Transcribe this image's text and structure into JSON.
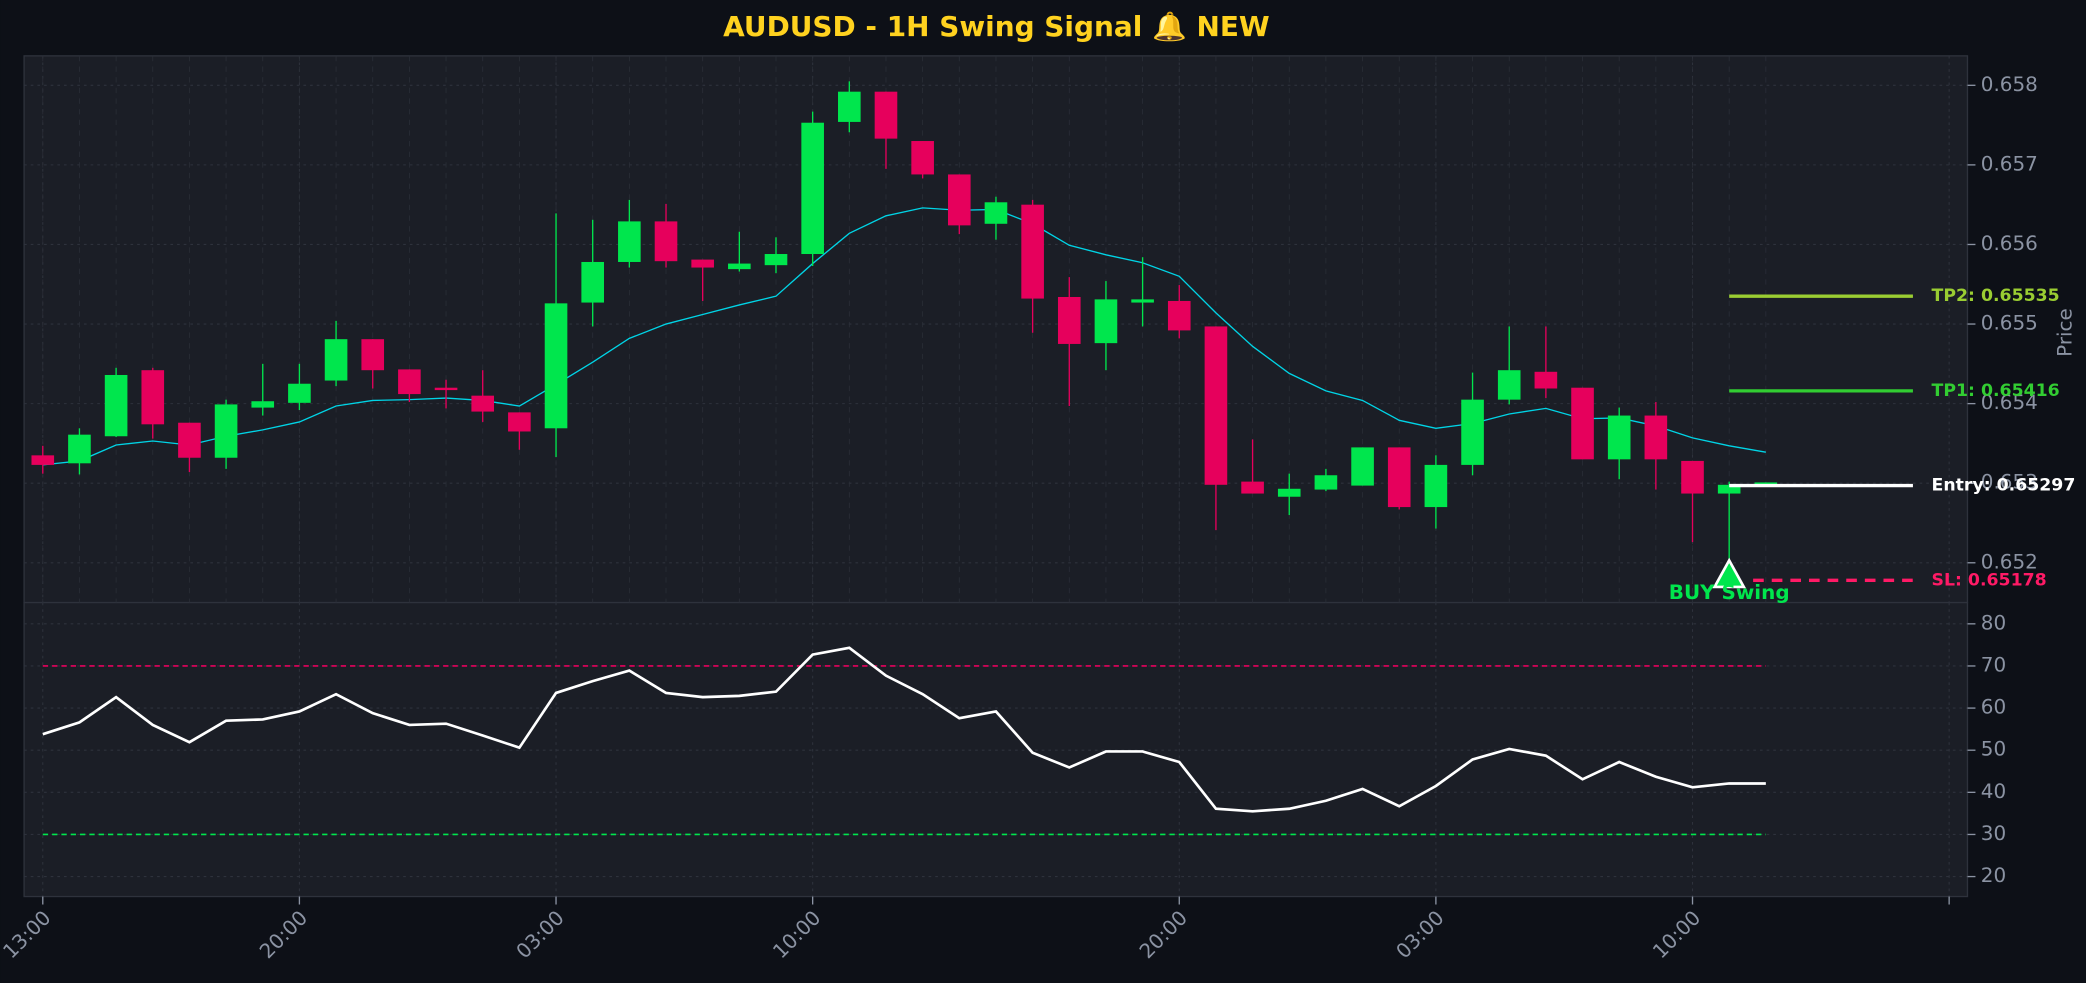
{
  "chart_data": [
    {
      "type": "candlestick",
      "title": "AUDUSD - 1H Swing Signal 🔔 NEW",
      "ylabel": "Price",
      "up_color": "#00e64d",
      "down_color": "#e6005c",
      "open": [
        0.65335,
        0.65325,
        0.65359,
        0.65442,
        0.65376,
        0.65332,
        0.65395,
        0.65401,
        0.65429,
        0.65481,
        0.65443,
        0.6542,
        0.6541,
        0.65389,
        0.65369,
        0.65527,
        0.65578,
        0.65629,
        0.65581,
        0.65569,
        0.65574,
        0.65588,
        0.65754,
        0.65792,
        0.6573,
        0.65688,
        0.65626,
        0.6565,
        0.65534,
        0.65476,
        0.65527,
        0.65529,
        0.65497,
        0.65302,
        0.65283,
        0.65292,
        0.65297,
        0.65345,
        0.6527,
        0.65323,
        0.65405,
        0.6544,
        0.6542,
        0.6533,
        0.65385,
        0.65328,
        0.65287,
        0.65299
      ],
      "high": [
        0.65347,
        0.65369,
        0.65445,
        0.65445,
        0.65376,
        0.65405,
        0.6545,
        0.6545,
        0.65504,
        0.65481,
        0.65443,
        0.6543,
        0.65442,
        0.65389,
        0.65639,
        0.65631,
        0.65656,
        0.65651,
        0.65581,
        0.65616,
        0.65609,
        0.65767,
        0.65805,
        0.65792,
        0.6573,
        0.65688,
        0.6566,
        0.65656,
        0.65559,
        0.65554,
        0.65584,
        0.65549,
        0.65497,
        0.65355,
        0.65312,
        0.65318,
        0.65345,
        0.65345,
        0.65335,
        0.65439,
        0.65497,
        0.65497,
        0.6542,
        0.65395,
        0.65402,
        0.65328,
        0.65302,
        0.65301
      ],
      "low": [
        0.65312,
        0.65311,
        0.65358,
        0.65356,
        0.65314,
        0.65318,
        0.65385,
        0.65392,
        0.65422,
        0.65419,
        0.65402,
        0.65394,
        0.65377,
        0.65342,
        0.65333,
        0.65497,
        0.65571,
        0.65571,
        0.65529,
        0.65566,
        0.65564,
        0.65573,
        0.65741,
        0.65695,
        0.65683,
        0.65613,
        0.65606,
        0.65489,
        0.65397,
        0.65442,
        0.65497,
        0.65482,
        0.65241,
        0.65287,
        0.6526,
        0.6529,
        0.65297,
        0.65267,
        0.65243,
        0.6531,
        0.65399,
        0.65407,
        0.6533,
        0.65305,
        0.65292,
        0.65226,
        0.65201,
        0.65296
      ],
      "close": [
        0.65323,
        0.65361,
        0.65436,
        0.65374,
        0.65332,
        0.65399,
        0.65403,
        0.65425,
        0.65481,
        0.65442,
        0.65412,
        0.65417,
        0.6539,
        0.65365,
        0.65526,
        0.65578,
        0.65629,
        0.65579,
        0.65571,
        0.65576,
        0.65588,
        0.65753,
        0.65792,
        0.65733,
        0.65688,
        0.65624,
        0.65653,
        0.65532,
        0.65475,
        0.65531,
        0.65531,
        0.65492,
        0.65298,
        0.65287,
        0.65293,
        0.6531,
        0.65345,
        0.6527,
        0.65323,
        0.65405,
        0.65442,
        0.65419,
        0.6533,
        0.65385,
        0.6533,
        0.65287,
        0.65298,
        0.65301
      ],
      "ma": {
        "color": "#00d4e6",
        "values": [
          0.65323,
          0.65328,
          0.65348,
          0.65353,
          0.65348,
          0.65359,
          0.65367,
          0.65377,
          0.65397,
          0.65404,
          0.65405,
          0.65407,
          0.65404,
          0.65397,
          0.65424,
          0.65452,
          0.65482,
          0.655,
          0.65512,
          0.65524,
          0.65535,
          0.65576,
          0.65614,
          0.65636,
          0.65646,
          0.65643,
          0.65644,
          0.65626,
          0.65599,
          0.65587,
          0.65577,
          0.6556,
          0.65514,
          0.65472,
          0.65438,
          0.65416,
          0.65404,
          0.65379,
          0.65369,
          0.65375,
          0.65387,
          0.65394,
          0.65381,
          0.65382,
          0.65372,
          0.65357,
          0.65347,
          0.65339
        ]
      },
      "levels": [
        {
          "value": 0.65535,
          "label": "TP2: 0.65535",
          "color": "#9acd32",
          "dashed": false
        },
        {
          "value": 0.65416,
          "label": "TP1: 0.65416",
          "color": "#32cd32",
          "dashed": false
        },
        {
          "value": 0.65297,
          "label": "Entry: 0.65297",
          "color": "#ffffff",
          "dashed": false
        },
        {
          "value": 0.65178,
          "label": "SL: 0.65178",
          "color": "#ff1a66",
          "dashed": true
        }
      ],
      "signal": {
        "label": "BUY Swing",
        "x": 46,
        "y": 0.65183,
        "color": "#00e64d"
      },
      "xlim": [
        -0.51,
        52.5
      ],
      "ylim": [
        0.6515,
        0.65837
      ],
      "yticks": [
        0.652,
        0.653,
        0.654,
        0.655,
        0.656,
        0.657,
        0.658
      ],
      "grid": true
    },
    {
      "type": "line",
      "color": "#ffffff",
      "values": [
        53.8,
        56.6,
        62.6,
        56.0,
        51.9,
        57.0,
        57.3,
        59.2,
        63.3,
        58.8,
        56.0,
        56.3,
        53.5,
        50.6,
        63.6,
        66.4,
        68.9,
        63.6,
        62.6,
        62.9,
        63.9,
        72.7,
        74.3,
        67.7,
        63.3,
        57.6,
        59.2,
        49.4,
        45.9,
        49.7,
        49.7,
        47.2,
        36.1,
        35.5,
        36.1,
        38.0,
        40.8,
        36.7,
        41.5,
        47.8,
        50.3,
        48.7,
        43.1,
        47.2,
        43.7,
        41.2,
        42.1,
        42.1
      ],
      "hlines": [
        {
          "value": 70,
          "color": "#e6005c"
        },
        {
          "value": 30,
          "color": "#00e64d"
        }
      ],
      "xlim": [
        -0.51,
        52.5
      ],
      "xticks": [
        {
          "value": 0,
          "label": "13:00"
        },
        {
          "value": 7,
          "label": "20:00"
        },
        {
          "value": 14,
          "label": "03:00"
        },
        {
          "value": 21,
          "label": "10:00"
        },
        {
          "value": 31,
          "label": "20:00"
        },
        {
          "value": 38,
          "label": "03:00"
        },
        {
          "value": 45,
          "label": "10:00"
        },
        {
          "value": 52,
          "label": null
        }
      ],
      "ylim": [
        15.26,
        85.05
      ],
      "yticks": [
        20,
        30,
        40,
        50,
        60,
        70,
        80
      ],
      "grid": true
    }
  ]
}
